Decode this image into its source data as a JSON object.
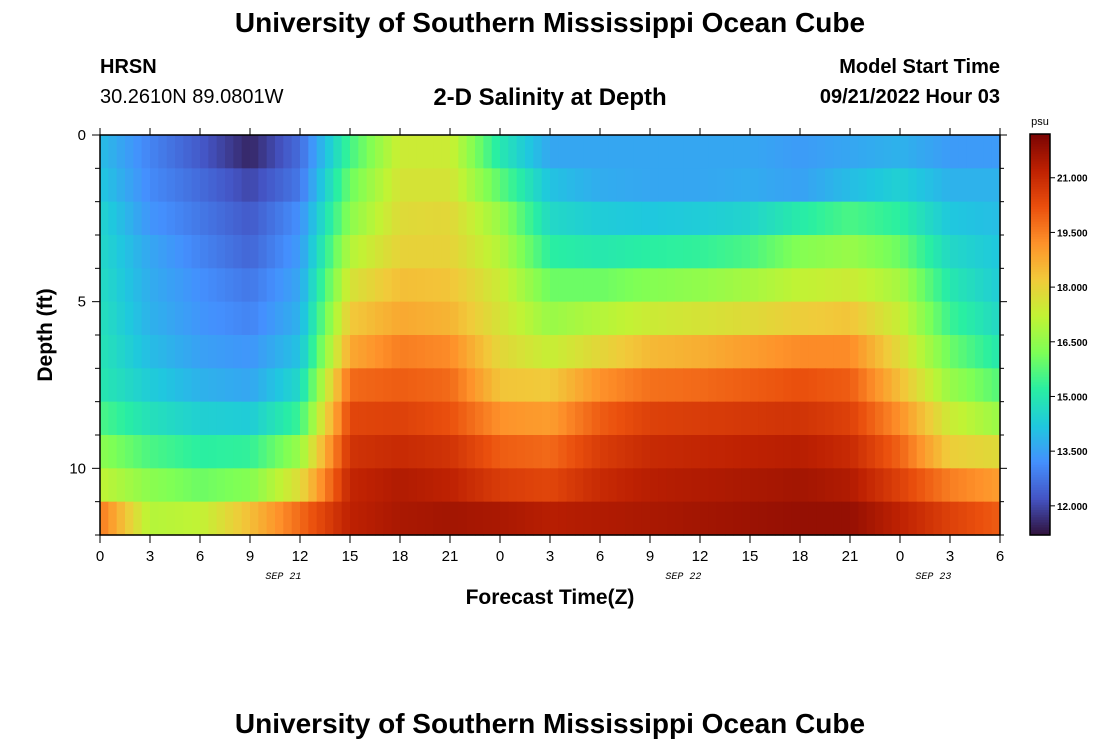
{
  "header": {
    "title": "University of Southern Mississippi Ocean Cube",
    "station": "HRSN",
    "coords": "30.2610N  89.0801W",
    "subtitle": "2-D Salinity at Depth",
    "model_label": "Model Start Time",
    "model_time": "09/21/2022 Hour 03"
  },
  "footer": {
    "title": "University of Southern Mississippi Ocean Cube"
  },
  "colors": {
    "colormap": [
      "#30123b",
      "#4454c4",
      "#4490fe",
      "#1fc8de",
      "#29efa2",
      "#7dff56",
      "#c1f334",
      "#f1ca3a",
      "#fe922a",
      "#ea4f0d",
      "#be2102",
      "#7a0403"
    ]
  },
  "chart_data": {
    "type": "heatmap",
    "title": "2-D Salinity at Depth",
    "xlabel": "Forecast Time(Z)",
    "ylabel": "Depth (ft)",
    "x_ticks": [
      "0",
      "3",
      "6",
      "9",
      "12",
      "15",
      "18",
      "21",
      "0",
      "3",
      "6",
      "9",
      "12",
      "15",
      "18",
      "21",
      "0",
      "3",
      "6"
    ],
    "x_date_labels": [
      {
        "label": "SEP 21",
        "hour": 11
      },
      {
        "label": "SEP 22",
        "hour": 35
      },
      {
        "label": "SEP 23",
        "hour": 50
      }
    ],
    "xlim_hours": [
      0,
      54
    ],
    "y_ticks": [
      "0",
      "5",
      "10"
    ],
    "y_tick_values": [
      0,
      5,
      10
    ],
    "ylim_ft": [
      0,
      12
    ],
    "colorbar": {
      "unit": "psu",
      "ticks": [
        "12.000",
        "13.500",
        "15.000",
        "16.500",
        "18.000",
        "19.500",
        "21.000"
      ],
      "tick_values": [
        12.0,
        13.5,
        15.0,
        16.5,
        18.0,
        19.5,
        21.0
      ],
      "range": [
        11.2,
        22.2
      ]
    },
    "depths_ft": [
      0.5,
      1.5,
      2.5,
      3.5,
      4.5,
      5.5,
      6.5,
      7.5,
      8.5,
      9.5,
      10.5,
      11.5
    ],
    "hours": [
      0,
      3,
      6,
      9,
      12,
      15,
      18,
      21,
      24,
      27,
      30,
      33,
      36,
      39,
      42,
      45,
      48,
      51,
      54
    ],
    "salinity_psu": [
      [
        14.0,
        13.0,
        12.3,
        11.5,
        12.6,
        15.5,
        17.4,
        17.4,
        15.0,
        13.6,
        13.6,
        13.6,
        13.6,
        13.6,
        13.4,
        13.6,
        13.8,
        13.4,
        13.4
      ],
      [
        14.2,
        13.1,
        12.6,
        12.0,
        12.8,
        16.0,
        17.6,
        17.6,
        15.8,
        14.1,
        13.7,
        13.6,
        13.6,
        13.7,
        13.5,
        14.0,
        14.4,
        13.8,
        13.8
      ],
      [
        14.5,
        13.3,
        12.8,
        12.3,
        13.2,
        16.4,
        17.8,
        17.9,
        16.6,
        14.6,
        14.3,
        14.2,
        14.3,
        14.5,
        15.1,
        15.6,
        15.2,
        14.2,
        14.0
      ],
      [
        14.6,
        13.6,
        13.0,
        12.5,
        13.4,
        17.0,
        18.0,
        18.0,
        17.0,
        15.2,
        15.0,
        15.2,
        15.3,
        15.6,
        16.3,
        16.6,
        16.0,
        14.6,
        14.2
      ],
      [
        14.7,
        13.7,
        13.2,
        12.8,
        13.6,
        17.6,
        18.4,
        18.3,
        17.4,
        16.0,
        16.0,
        16.3,
        16.5,
        16.8,
        17.2,
        17.4,
        16.8,
        15.0,
        14.3
      ],
      [
        14.8,
        13.8,
        13.3,
        13.0,
        13.8,
        18.2,
        18.8,
        18.6,
        17.6,
        16.6,
        17.0,
        17.4,
        17.6,
        17.8,
        18.1,
        18.3,
        17.3,
        15.4,
        14.6
      ],
      [
        14.9,
        14.0,
        13.5,
        13.3,
        14.1,
        18.8,
        19.5,
        19.3,
        17.9,
        17.3,
        17.9,
        18.5,
        18.7,
        19.0,
        19.3,
        19.3,
        17.8,
        16.0,
        15.0
      ],
      [
        15.0,
        14.3,
        13.8,
        13.6,
        14.6,
        19.8,
        20.0,
        19.8,
        18.3,
        18.2,
        19.2,
        19.7,
        19.8,
        20.0,
        20.2,
        20.0,
        18.4,
        16.6,
        15.7
      ],
      [
        15.6,
        14.8,
        14.4,
        14.3,
        15.4,
        20.4,
        20.5,
        20.2,
        19.2,
        19.0,
        20.0,
        20.5,
        20.6,
        20.7,
        20.8,
        20.5,
        19.2,
        17.4,
        16.6
      ],
      [
        16.4,
        15.6,
        15.2,
        15.3,
        16.6,
        20.8,
        21.0,
        20.8,
        20.0,
        19.8,
        20.6,
        21.0,
        21.1,
        21.2,
        21.3,
        21.0,
        19.9,
        18.1,
        17.8
      ],
      [
        17.2,
        16.4,
        16.0,
        16.3,
        17.8,
        21.1,
        21.4,
        21.2,
        20.6,
        20.4,
        21.0,
        21.3,
        21.4,
        21.5,
        21.6,
        21.4,
        20.5,
        19.5,
        19.0
      ],
      [
        19.6,
        17.0,
        17.2,
        18.4,
        19.8,
        21.2,
        21.5,
        21.6,
        21.5,
        21.3,
        21.4,
        21.5,
        21.6,
        21.7,
        21.8,
        21.8,
        21.2,
        20.5,
        20.0
      ]
    ],
    "grid": false,
    "legend": "colorbar-right"
  }
}
